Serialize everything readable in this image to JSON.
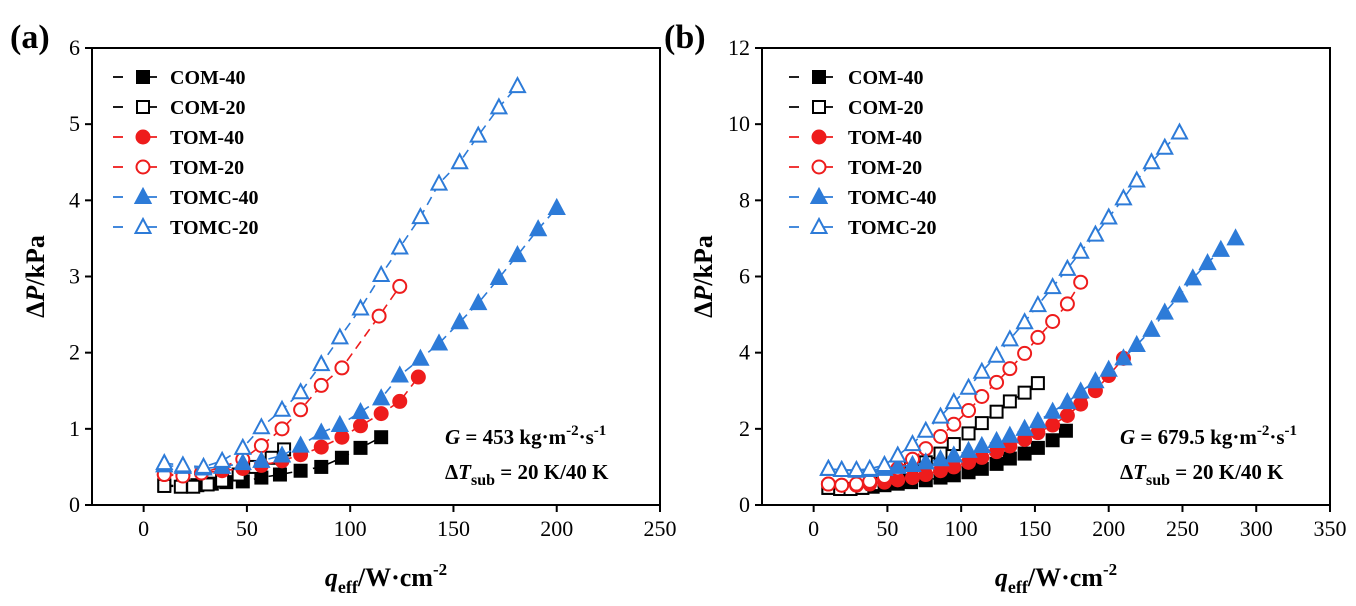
{
  "chart_data": [
    {
      "type": "scatter",
      "panel_label": "(a)",
      "xlabel": {
        "main": "q",
        "sub": "eff",
        "unit": "/W·cm",
        "sup": "-2"
      },
      "ylabel": {
        "delta": "Δ",
        "main": "P",
        "unit": "/kPa"
      },
      "xlim": [
        -25,
        250
      ],
      "ylim": [
        0,
        6
      ],
      "xticks": [
        0,
        50,
        100,
        150,
        200,
        250
      ],
      "yticks": [
        0,
        1,
        2,
        3,
        4,
        5,
        6
      ],
      "annotation": {
        "g_symbol": "G",
        "g_text": " = 453 kg·m",
        "g_sup1": "-2",
        "g_mid": "·s",
        "g_sup2": "-1",
        "dt_symbol": "ΔT",
        "dt_sub": "sub",
        "dt_text": " = 20 K/40 K"
      },
      "series": [
        {
          "name": "COM-40",
          "color": "#000000",
          "marker": "square",
          "filled": true,
          "x": [
            10,
            19,
            26,
            33,
            40,
            48,
            57,
            66,
            76,
            86,
            96,
            105,
            115
          ],
          "y": [
            0.26,
            0.25,
            0.26,
            0.28,
            0.3,
            0.31,
            0.36,
            0.4,
            0.45,
            0.5,
            0.62,
            0.75,
            0.89
          ]
        },
        {
          "name": "COM-20",
          "color": "#000000",
          "marker": "square",
          "filled": false,
          "x": [
            10,
            18,
            24,
            31,
            38,
            46,
            54,
            62,
            68
          ],
          "y": [
            0.25,
            0.24,
            0.24,
            0.27,
            0.32,
            0.4,
            0.5,
            0.62,
            0.73
          ]
        },
        {
          "name": "TOM-40",
          "color": "#ee1c1c",
          "marker": "circle",
          "filled": true,
          "x": [
            10,
            19,
            28,
            38,
            48,
            57,
            67,
            76,
            86,
            96,
            105,
            115,
            124,
            133
          ],
          "y": [
            0.4,
            0.4,
            0.42,
            0.45,
            0.48,
            0.52,
            0.58,
            0.66,
            0.76,
            0.89,
            1.04,
            1.2,
            1.36,
            1.68
          ]
        },
        {
          "name": "TOM-20",
          "color": "#ee1c1c",
          "marker": "circle",
          "filled": false,
          "x": [
            10,
            19,
            28,
            38,
            48,
            57,
            67,
            76,
            86,
            96,
            114,
            124
          ],
          "y": [
            0.4,
            0.38,
            0.42,
            0.5,
            0.6,
            0.78,
            1.0,
            1.25,
            1.57,
            1.8,
            2.48,
            2.87
          ]
        },
        {
          "name": "TOMC-40",
          "color": "#2d7bd8",
          "marker": "triangle",
          "filled": true,
          "x": [
            10,
            19,
            29,
            38,
            48,
            57,
            67,
            76,
            86,
            95,
            105,
            115,
            124,
            134,
            143,
            153,
            162,
            172,
            181,
            191,
            200
          ],
          "y": [
            0.52,
            0.5,
            0.48,
            0.5,
            0.55,
            0.58,
            0.65,
            0.78,
            0.95,
            1.05,
            1.22,
            1.4,
            1.7,
            1.92,
            2.12,
            2.4,
            2.65,
            2.98,
            3.28,
            3.62,
            3.9
          ]
        },
        {
          "name": "TOMC-20",
          "color": "#2d7bd8",
          "marker": "triangle",
          "filled": false,
          "x": [
            10,
            19,
            29,
            38,
            48,
            57,
            67,
            76,
            86,
            95,
            105,
            115,
            124,
            134,
            143,
            153,
            162,
            172,
            181
          ],
          "y": [
            0.55,
            0.52,
            0.5,
            0.58,
            0.75,
            1.02,
            1.25,
            1.48,
            1.85,
            2.2,
            2.58,
            3.02,
            3.38,
            3.78,
            4.22,
            4.5,
            4.85,
            5.22,
            5.5
          ]
        }
      ]
    },
    {
      "type": "scatter",
      "panel_label": "(b)",
      "xlabel": {
        "main": "q",
        "sub": "eff",
        "unit": "/W·cm",
        "sup": "-2"
      },
      "ylabel": {
        "delta": "Δ",
        "main": "P",
        "unit": "/kPa"
      },
      "xlim": [
        -35,
        350
      ],
      "ylim": [
        0,
        12
      ],
      "xticks": [
        0,
        50,
        100,
        150,
        200,
        250,
        300,
        350
      ],
      "yticks": [
        0,
        2,
        4,
        6,
        8,
        10,
        12
      ],
      "annotation": {
        "g_symbol": "G",
        "g_text": " = 679.5 kg·m",
        "g_sup1": "-2",
        "g_mid": "·s",
        "g_sup2": "-1",
        "dt_symbol": "ΔT",
        "dt_sub": "sub",
        "dt_text": " = 20 K/40 K"
      },
      "series": [
        {
          "name": "COM-40",
          "color": "#000000",
          "marker": "square",
          "filled": true,
          "x": [
            10,
            18,
            25,
            33,
            40,
            48,
            57,
            66,
            76,
            86,
            95,
            105,
            114,
            124,
            133,
            143,
            152,
            162,
            171
          ],
          "y": [
            0.45,
            0.42,
            0.42,
            0.45,
            0.48,
            0.52,
            0.56,
            0.6,
            0.65,
            0.72,
            0.78,
            0.86,
            0.95,
            1.08,
            1.22,
            1.35,
            1.5,
            1.7,
            1.95
          ]
        },
        {
          "name": "COM-20",
          "color": "#000000",
          "marker": "square",
          "filled": false,
          "x": [
            10,
            18,
            25,
            33,
            40,
            48,
            57,
            66,
            76,
            86,
            95,
            105,
            114,
            124,
            133,
            143,
            152
          ],
          "y": [
            0.45,
            0.42,
            0.42,
            0.45,
            0.55,
            0.65,
            0.8,
            0.95,
            1.12,
            1.35,
            1.6,
            1.88,
            2.15,
            2.45,
            2.72,
            2.95,
            3.2
          ]
        },
        {
          "name": "TOM-40",
          "color": "#ee1c1c",
          "marker": "circle",
          "filled": true,
          "x": [
            10,
            19,
            29,
            38,
            48,
            57,
            67,
            76,
            86,
            95,
            105,
            114,
            124,
            133,
            143,
            152,
            162,
            172,
            181,
            191,
            200,
            210
          ],
          "y": [
            0.55,
            0.52,
            0.52,
            0.55,
            0.6,
            0.66,
            0.72,
            0.8,
            0.9,
            1.0,
            1.12,
            1.25,
            1.4,
            1.55,
            1.72,
            1.9,
            2.1,
            2.35,
            2.65,
            3.0,
            3.4,
            3.85
          ]
        },
        {
          "name": "TOM-20",
          "color": "#ee1c1c",
          "marker": "circle",
          "filled": false,
          "x": [
            10,
            19,
            29,
            38,
            48,
            57,
            67,
            76,
            86,
            95,
            105,
            114,
            124,
            133,
            143,
            152,
            162,
            172,
            181
          ],
          "y": [
            0.55,
            0.52,
            0.55,
            0.62,
            0.75,
            0.95,
            1.2,
            1.48,
            1.8,
            2.12,
            2.48,
            2.85,
            3.22,
            3.58,
            3.98,
            4.4,
            4.82,
            5.28,
            5.85
          ]
        },
        {
          "name": "TOMC-40",
          "color": "#2d7bd8",
          "marker": "triangle",
          "filled": true,
          "x": [
            10,
            19,
            29,
            38,
            48,
            57,
            67,
            76,
            86,
            95,
            105,
            114,
            124,
            133,
            143,
            152,
            162,
            172,
            181,
            191,
            200,
            210,
            219,
            229,
            238,
            248,
            257,
            267,
            276,
            286
          ],
          "y": [
            0.95,
            0.92,
            0.9,
            0.92,
            0.95,
            1.0,
            1.05,
            1.12,
            1.2,
            1.3,
            1.42,
            1.55,
            1.68,
            1.82,
            2.0,
            2.2,
            2.45,
            2.7,
            2.98,
            3.25,
            3.55,
            3.85,
            4.2,
            4.6,
            5.05,
            5.5,
            5.95,
            6.35,
            6.7,
            7.0
          ]
        },
        {
          "name": "TOMC-20",
          "color": "#2d7bd8",
          "marker": "triangle",
          "filled": false,
          "x": [
            10,
            19,
            29,
            38,
            48,
            57,
            67,
            76,
            86,
            95,
            105,
            114,
            124,
            133,
            143,
            152,
            162,
            172,
            181,
            191,
            200,
            210,
            219,
            229,
            238,
            248
          ],
          "y": [
            0.95,
            0.92,
            0.92,
            0.95,
            1.05,
            1.3,
            1.6,
            1.95,
            2.32,
            2.7,
            3.08,
            3.5,
            3.92,
            4.35,
            4.8,
            5.25,
            5.72,
            6.2,
            6.65,
            7.1,
            7.55,
            8.05,
            8.52,
            9.0,
            9.38,
            9.78
          ]
        }
      ]
    }
  ]
}
